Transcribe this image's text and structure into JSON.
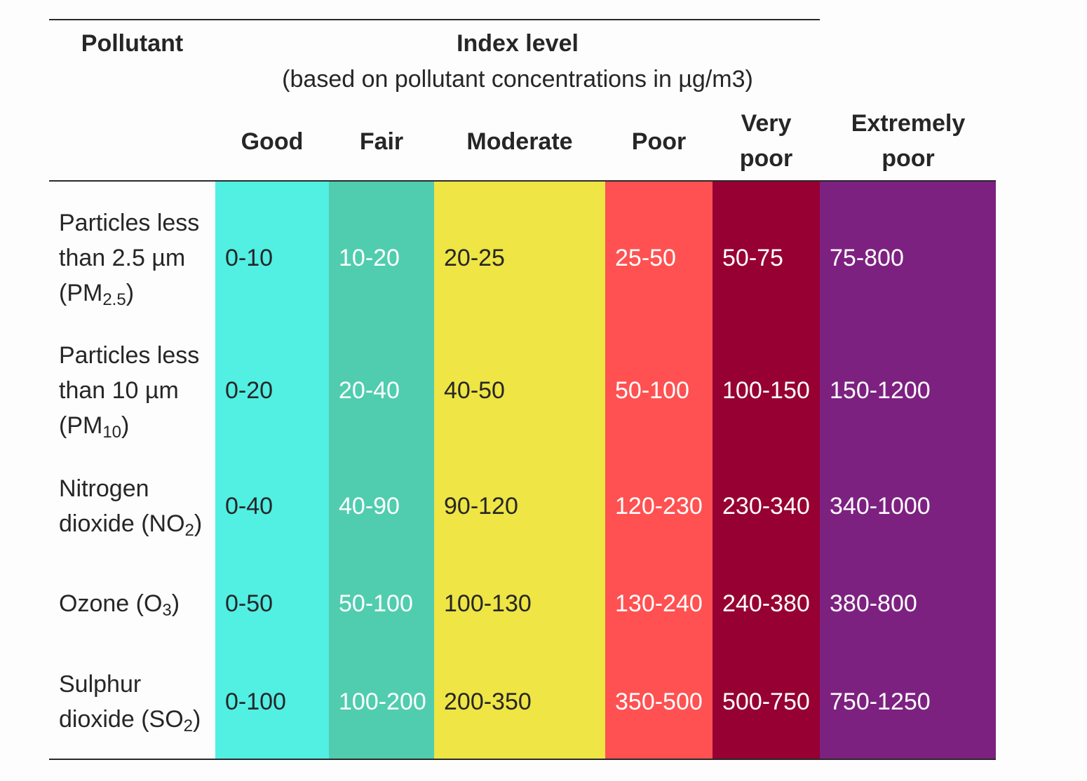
{
  "header": {
    "pollutant": "Pollutant",
    "index_level": "Index level",
    "index_sub": "(based on pollutant concentrations in µg/m3)",
    "levels": [
      "Good",
      "Fair",
      "Moderate",
      "Poor",
      "Very poor",
      "Extremely poor"
    ]
  },
  "colors": {
    "good": "#52efe3",
    "fair": "#50cdae",
    "moderate": "#efe544",
    "poor": "#ff5151",
    "very_poor": "#960032",
    "extremely_poor": "#7d2181"
  },
  "rows": [
    {
      "pollutant": "Particles less than 2.5 µm (PM",
      "sub": "2.5",
      "tail": ")",
      "values": [
        "0-10",
        "10-20",
        "20-25",
        "25-50",
        "50-75",
        "75-800"
      ]
    },
    {
      "pollutant": "Particles less than 10 µm (PM",
      "sub": "10",
      "tail": ")",
      "values": [
        "0-20",
        "20-40",
        "40-50",
        "50-100",
        "100-150",
        "150-1200"
      ]
    },
    {
      "pollutant": "Nitrogen dioxide (NO",
      "sub": "2",
      "tail": ")",
      "values": [
        "0-40",
        "40-90",
        "90-120",
        "120-230",
        "230-340",
        "340-1000"
      ]
    },
    {
      "pollutant": "Ozone (O",
      "sub": "3",
      "tail": ")",
      "values": [
        "0-50",
        "50-100",
        "100-130",
        "130-240",
        "240-380",
        "380-800"
      ]
    },
    {
      "pollutant": "Sulphur dioxide (SO",
      "sub": "2",
      "tail": ")",
      "values": [
        "0-100",
        "100-200",
        "200-350",
        "350-500",
        "500-750",
        "750-1250"
      ]
    }
  ]
}
